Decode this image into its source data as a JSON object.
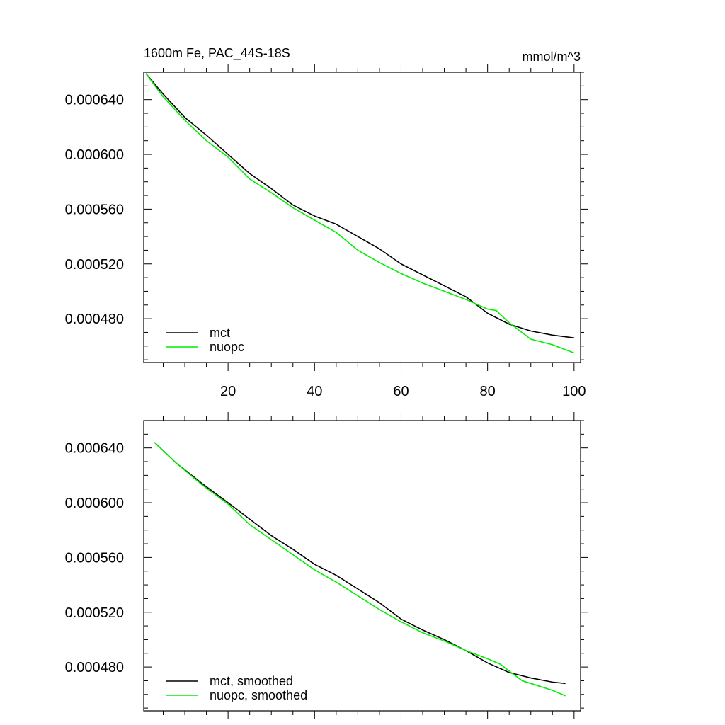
{
  "chart_data": [
    {
      "type": "line",
      "title_left": "1600m Fe, PAC_44S-18S",
      "title_right": "mmol/m^3",
      "xlabel": "",
      "ylabel": "",
      "xlim": [
        0.5,
        101.5
      ],
      "ylim": [
        0.000448,
        0.00066
      ],
      "xticks": [
        20,
        40,
        60,
        80,
        100
      ],
      "xtick_labels": [
        "20",
        "40",
        "60",
        "80",
        "100"
      ],
      "yticks": [
        0.00048,
        0.00052,
        0.00056,
        0.0006,
        0.00064
      ],
      "ytick_labels": [
        "0.000480",
        "0.000520",
        "0.000560",
        "0.000600",
        "0.000640"
      ],
      "legend_position": "bottom-left",
      "series": [
        {
          "name": "mct",
          "color": "#000000",
          "points": [
            [
              1,
              0.000659
            ],
            [
              5,
              0.000644
            ],
            [
              10,
              0.000627
            ],
            [
              15,
              0.000614
            ],
            [
              20,
              0.0006
            ],
            [
              25,
              0.000586
            ],
            [
              30,
              0.000575
            ],
            [
              35,
              0.000563
            ],
            [
              40,
              0.000555
            ],
            [
              45,
              0.000549
            ],
            [
              50,
              0.00054
            ],
            [
              55,
              0.000531
            ],
            [
              60,
              0.00052
            ],
            [
              65,
              0.000512
            ],
            [
              70,
              0.000504
            ],
            [
              75,
              0.000496
            ],
            [
              80,
              0.000484
            ],
            [
              85,
              0.000476
            ],
            [
              90,
              0.000471
            ],
            [
              95,
              0.000468
            ],
            [
              100,
              0.000466
            ]
          ]
        },
        {
          "name": "nuopc",
          "color": "#00ee00",
          "points": [
            [
              1,
              0.000659
            ],
            [
              5,
              0.000642
            ],
            [
              10,
              0.000625
            ],
            [
              15,
              0.00061
            ],
            [
              20,
              0.000598
            ],
            [
              25,
              0.000582
            ],
            [
              30,
              0.000572
            ],
            [
              35,
              0.000561
            ],
            [
              40,
              0.000552
            ],
            [
              45,
              0.000543
            ],
            [
              50,
              0.00053
            ],
            [
              55,
              0.000521
            ],
            [
              60,
              0.000513
            ],
            [
              65,
              0.000506
            ],
            [
              70,
              0.0005
            ],
            [
              75,
              0.000494
            ],
            [
              80,
              0.000487
            ],
            [
              82,
              0.000486
            ],
            [
              85,
              0.000477
            ],
            [
              90,
              0.000465
            ],
            [
              95,
              0.000461
            ],
            [
              100,
              0.000455
            ]
          ]
        }
      ]
    },
    {
      "type": "line",
      "xlim": [
        0.5,
        101.5
      ],
      "ylim": [
        0.000448,
        0.00066
      ],
      "xticks": [
        20,
        40,
        60,
        80,
        100
      ],
      "yticks": [
        0.00048,
        0.00052,
        0.00056,
        0.0006,
        0.00064
      ],
      "ytick_labels": [
        "0.000480",
        "0.000520",
        "0.000560",
        "0.000600",
        "0.000640"
      ],
      "legend_position": "bottom-left",
      "series": [
        {
          "name": "mct, smoothed",
          "color": "#000000",
          "points": [
            [
              3,
              0.000644
            ],
            [
              8,
              0.000629
            ],
            [
              14,
              0.000614
            ],
            [
              20,
              0.0006
            ],
            [
              25,
              0.000588
            ],
            [
              30,
              0.000576
            ],
            [
              35,
              0.000566
            ],
            [
              40,
              0.000555
            ],
            [
              45,
              0.000547
            ],
            [
              50,
              0.000537
            ],
            [
              55,
              0.000527
            ],
            [
              60,
              0.000515
            ],
            [
              65,
              0.000507
            ],
            [
              70,
              0.0005
            ],
            [
              75,
              0.000492
            ],
            [
              80,
              0.000483
            ],
            [
              85,
              0.000476
            ],
            [
              90,
              0.000472
            ],
            [
              95,
              0.000469
            ],
            [
              98,
              0.000468
            ]
          ]
        },
        {
          "name": "nuopc, smoothed",
          "color": "#00ee00",
          "points": [
            [
              3,
              0.000644
            ],
            [
              8,
              0.000629
            ],
            [
              14,
              0.000613
            ],
            [
              20,
              0.000599
            ],
            [
              25,
              0.000584
            ],
            [
              30,
              0.000573
            ],
            [
              35,
              0.000562
            ],
            [
              40,
              0.000551
            ],
            [
              45,
              0.000542
            ],
            [
              50,
              0.000532
            ],
            [
              55,
              0.000522
            ],
            [
              60,
              0.000513
            ],
            [
              65,
              0.000505
            ],
            [
              70,
              0.000499
            ],
            [
              75,
              0.000492
            ],
            [
              80,
              0.000486
            ],
            [
              83,
              0.000482
            ],
            [
              85,
              0.000477
            ],
            [
              88,
              0.00047
            ],
            [
              92,
              0.000466
            ],
            [
              95,
              0.000463
            ],
            [
              98,
              0.000459
            ]
          ]
        }
      ]
    }
  ]
}
